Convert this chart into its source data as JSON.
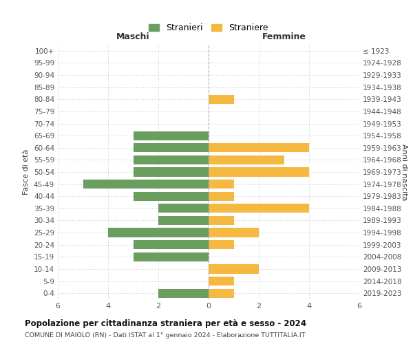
{
  "age_groups": [
    "0-4",
    "5-9",
    "10-14",
    "15-19",
    "20-24",
    "25-29",
    "30-34",
    "35-39",
    "40-44",
    "45-49",
    "50-54",
    "55-59",
    "60-64",
    "65-69",
    "70-74",
    "75-79",
    "80-84",
    "85-89",
    "90-94",
    "95-99",
    "100+"
  ],
  "birth_years": [
    "2019-2023",
    "2014-2018",
    "2009-2013",
    "2004-2008",
    "1999-2003",
    "1994-1998",
    "1989-1993",
    "1984-1988",
    "1979-1983",
    "1974-1978",
    "1969-1973",
    "1964-1968",
    "1959-1963",
    "1954-1958",
    "1949-1953",
    "1944-1948",
    "1939-1943",
    "1934-1938",
    "1929-1933",
    "1924-1928",
    "≤ 1923"
  ],
  "males": [
    2,
    0,
    0,
    3,
    3,
    4,
    2,
    2,
    3,
    5,
    3,
    3,
    3,
    3,
    0,
    0,
    0,
    0,
    0,
    0,
    0
  ],
  "females": [
    1,
    1,
    2,
    0,
    1,
    2,
    1,
    4,
    1,
    1,
    4,
    3,
    4,
    0,
    0,
    0,
    1,
    0,
    0,
    0,
    0
  ],
  "male_color": "#6a9e5e",
  "female_color": "#f5b942",
  "background_color": "#ffffff",
  "grid_color": "#cccccc",
  "title": "Popolazione per cittadinanza straniera per età e sesso - 2024",
  "subtitle": "COMUNE DI MAIOLO (RN) - Dati ISTAT al 1° gennaio 2024 - Elaborazione TUTTITALIA.IT",
  "legend_male": "Stranieri",
  "legend_female": "Straniere",
  "xlabel_left": "Maschi",
  "xlabel_right": "Femmine",
  "ylabel_left": "Fasce di età",
  "ylabel_right": "Anni di nascita",
  "xlim": 6
}
